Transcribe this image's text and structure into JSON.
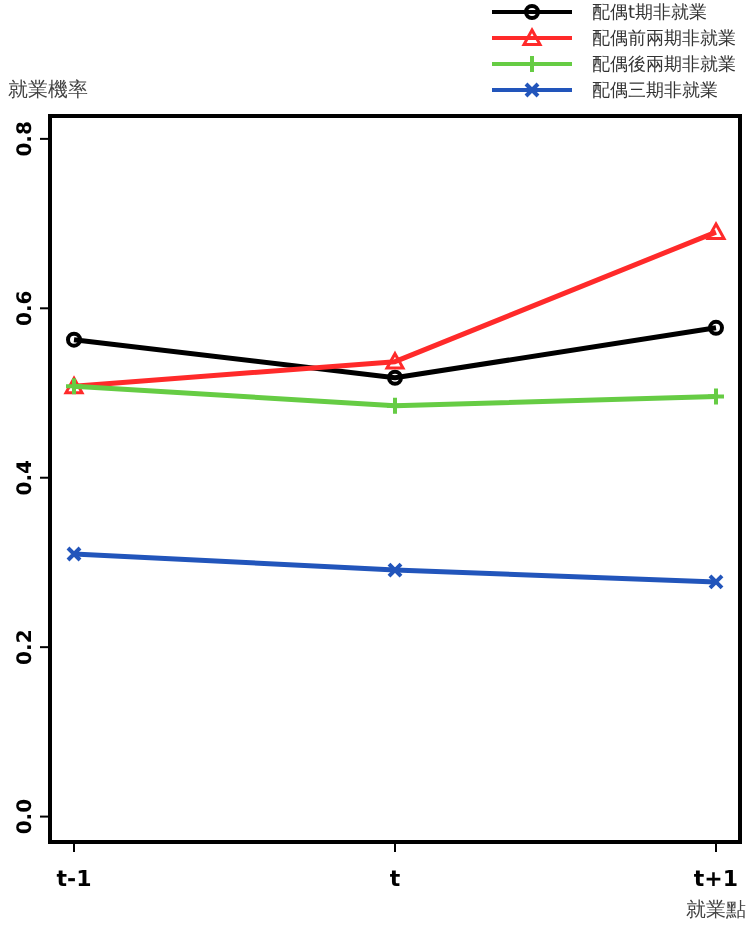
{
  "chart_data": {
    "type": "line",
    "xlabel": "就業點",
    "ylabel": "就業機率",
    "categories": [
      "t-1",
      "t",
      "t+1"
    ],
    "ylim": [
      -0.03,
      0.827
    ],
    "yticks": [
      {
        "value": 0,
        "label": "0.0"
      },
      {
        "value": 0.2,
        "label": "0.2"
      },
      {
        "value": 0.4,
        "label": "0.4"
      },
      {
        "value": 0.6,
        "label": "0.6"
      },
      {
        "value": 0.8,
        "label": "0.8"
      }
    ],
    "legend": "top right",
    "grid": false,
    "line_style": "solid",
    "series": [
      {
        "name": "配偶t期非就業",
        "color": "#000000",
        "marker": "circle",
        "values": [
          0.563,
          0.518,
          0.577
        ]
      },
      {
        "name": "配偶前兩期非就業",
        "color": "#ff2a2a",
        "marker": "triangle",
        "values": [
          0.508,
          0.537,
          0.69
        ]
      },
      {
        "name": "配偶後兩期非就業",
        "color": "#66cc44",
        "marker": "plus",
        "values": [
          0.508,
          0.485,
          0.496
        ]
      },
      {
        "name": "配偶三期非就業",
        "color": "#2255bb",
        "marker": "cross",
        "values": [
          0.31,
          0.291,
          0.277
        ]
      }
    ]
  }
}
